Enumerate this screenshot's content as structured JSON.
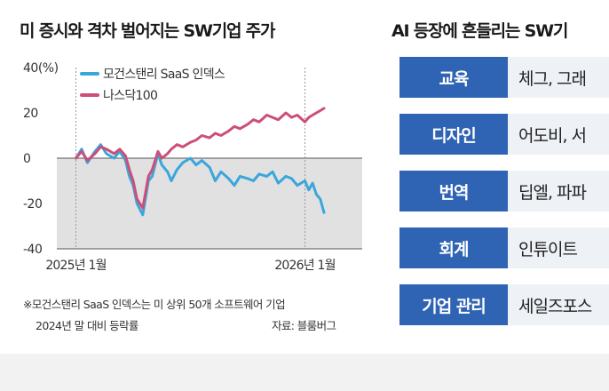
{
  "left_panel": {
    "title": "미 증시와 격차 벌어지는 SW기업 주가",
    "note_line1": "※모건스탠리 SaaS 인덱스는 미 상위 50개 소프트웨어 기업",
    "note_line2": "2024년 말 대비 등락률",
    "source": "자료: 블룸버그"
  },
  "right_panel": {
    "title": "AI 등장에 흔들리는 SW기",
    "rows": [
      {
        "label": "교육",
        "value": "체그, 그래"
      },
      {
        "label": "디자인",
        "value": "어도비, 서"
      },
      {
        "label": "번역",
        "value": "딥엘, 파파"
      },
      {
        "label": "회계",
        "value": "인튜이트"
      },
      {
        "label": "기업 관리",
        "value": "세일즈포스"
      }
    ]
  },
  "colors": {
    "saas": "#3aa6dc",
    "nasdaq": "#cc4f78",
    "negative_area": "#e1e1e1",
    "row_label_bg": "#2f63b3",
    "row_value_bg": "#eef1f6"
  },
  "chart_data": {
    "type": "line",
    "title": "미 증시와 격차 벌어지는 SW기업 주가",
    "y_unit": "(%)",
    "ylim": [
      -40,
      40
    ],
    "y_ticks": [
      40,
      20,
      0,
      -20,
      -40
    ],
    "y_tick_labels": [
      "40(%)",
      "20",
      "0",
      "-20",
      "-40"
    ],
    "x_range": [
      -1,
      15
    ],
    "x_ticks": [
      0,
      12
    ],
    "x_tick_labels": [
      "2025년 1월",
      "2026년 1월"
    ],
    "xlabel": "",
    "ylabel": "",
    "legend_position": "top-left",
    "series": [
      {
        "name": "모건스탠리 SaaS 인덱스",
        "color_key": "saas",
        "x": [
          0,
          0.3,
          0.6,
          1,
          1.3,
          1.6,
          2,
          2.3,
          2.6,
          2.8,
          3,
          3.2,
          3.5,
          3.8,
          4,
          4.3,
          4.5,
          4.8,
          5,
          5.3,
          5.6,
          6,
          6.3,
          6.6,
          7,
          7.3,
          7.6,
          8,
          8.3,
          8.6,
          9,
          9.3,
          9.6,
          10,
          10.3,
          10.6,
          11,
          11.3,
          11.6,
          12,
          12.2,
          12.4,
          12.6,
          12.8,
          13
        ],
        "values": [
          0,
          4,
          -2,
          3,
          6,
          2,
          0,
          3,
          -1,
          -8,
          -12,
          -20,
          -25,
          -10,
          -8,
          2,
          -3,
          -6,
          -10,
          -5,
          -2,
          0,
          -3,
          -1,
          -4,
          -10,
          -6,
          -9,
          -12,
          -8,
          -9,
          -10,
          -7,
          -8,
          -6,
          -11,
          -8,
          -9,
          -12,
          -10,
          -14,
          -11,
          -16,
          -18,
          -24
        ]
      },
      {
        "name": "나스닥100",
        "color_key": "nasdaq",
        "x": [
          0,
          0.3,
          0.6,
          1,
          1.3,
          1.6,
          2,
          2.3,
          2.6,
          2.8,
          3,
          3.2,
          3.5,
          3.8,
          4,
          4.3,
          4.5,
          4.8,
          5,
          5.3,
          5.6,
          6,
          6.3,
          6.6,
          7,
          7.3,
          7.6,
          8,
          8.3,
          8.6,
          9,
          9.3,
          9.6,
          10,
          10.3,
          10.6,
          11,
          11.3,
          11.6,
          12,
          12.2,
          12.4,
          12.6,
          12.8,
          13
        ],
        "values": [
          0,
          3,
          -1,
          2,
          5,
          4,
          2,
          4,
          1,
          -5,
          -10,
          -18,
          -22,
          -8,
          -5,
          3,
          0,
          2,
          4,
          6,
          5,
          7,
          8,
          10,
          9,
          11,
          10,
          12,
          14,
          13,
          15,
          17,
          16,
          19,
          18,
          17,
          20,
          18,
          19,
          16,
          18,
          19,
          20,
          21,
          22
        ]
      }
    ]
  }
}
